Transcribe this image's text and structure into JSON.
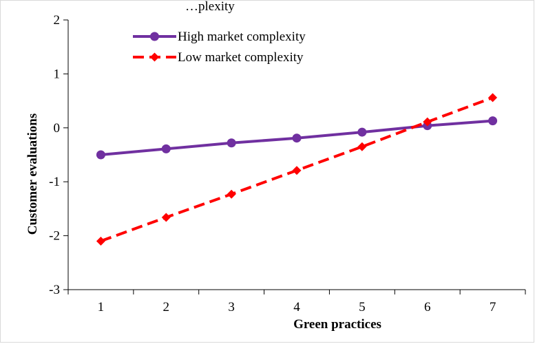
{
  "chart_data": {
    "type": "line",
    "title": "…plexity",
    "xlabel": "Green practices",
    "ylabel": "Customer evaluations",
    "x": [
      1,
      2,
      3,
      4,
      5,
      6,
      7
    ],
    "xlim": [
      0.5,
      7.5
    ],
    "ylim": [
      -3,
      2
    ],
    "yticks": [
      2,
      1,
      0,
      -1,
      -2,
      -3
    ],
    "grid": false,
    "legend_position": "top-left",
    "series": [
      {
        "name": "High market complexity",
        "values": [
          -0.5,
          -0.39,
          -0.28,
          -0.19,
          -0.08,
          0.04,
          0.13
        ],
        "color": "#7030a0",
        "line_style": "solid",
        "marker": "circle"
      },
      {
        "name": "Low market complexity",
        "values": [
          -2.1,
          -1.66,
          -1.23,
          -0.79,
          -0.35,
          0.11,
          0.56
        ],
        "color": "#ff0000",
        "line_style": "dashed",
        "marker": "diamond"
      }
    ]
  }
}
